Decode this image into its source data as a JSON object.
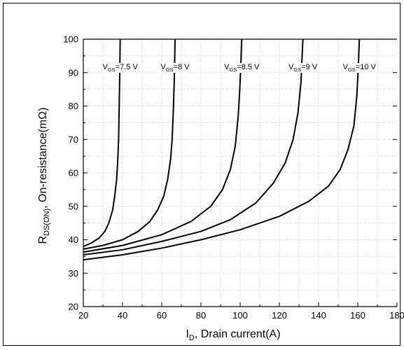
{
  "chart_data": {
    "type": "line",
    "xlabel": {
      "main": "I",
      "sub": "D",
      "rest": ", Drain current(A)"
    },
    "ylabel": {
      "main": "R",
      "sub": "DS(ON)",
      "rest": ", On-resistance(mΩ)"
    },
    "xlim": [
      20,
      180
    ],
    "ylim": [
      20,
      100
    ],
    "xticks": [
      20,
      40,
      60,
      80,
      100,
      120,
      140,
      160,
      180
    ],
    "yticks": [
      20,
      30,
      40,
      50,
      60,
      70,
      80,
      90,
      100
    ],
    "grid": true,
    "series": [
      {
        "name": "VGS=7.5 V",
        "label": {
          "main": "V",
          "sub": "GS",
          "rest": "=7.5 V"
        },
        "points": [
          [
            20,
            38
          ],
          [
            24,
            39
          ],
          [
            28,
            40.5
          ],
          [
            31,
            42.5
          ],
          [
            33,
            45
          ],
          [
            35,
            49
          ],
          [
            36,
            53
          ],
          [
            37,
            58
          ],
          [
            37.5,
            63
          ],
          [
            38,
            70
          ],
          [
            38.3,
            80
          ],
          [
            38.6,
            90
          ],
          [
            38.8,
            100
          ]
        ]
      },
      {
        "name": "VGS=8 V",
        "label": {
          "main": "V",
          "sub": "GS",
          "rest": "=8 V"
        },
        "points": [
          [
            20,
            37.2
          ],
          [
            30,
            38.3
          ],
          [
            40,
            40
          ],
          [
            48,
            42.5
          ],
          [
            54,
            45.5
          ],
          [
            58,
            49
          ],
          [
            61,
            53
          ],
          [
            63,
            58
          ],
          [
            64.5,
            64
          ],
          [
            65.3,
            70
          ],
          [
            66,
            80
          ],
          [
            66.5,
            90
          ],
          [
            66.8,
            100
          ]
        ]
      },
      {
        "name": "VGS=8.5 V",
        "label": {
          "main": "V",
          "sub": "GS",
          "rest": "=8.5 V"
        },
        "points": [
          [
            20,
            36.3
          ],
          [
            40,
            38.3
          ],
          [
            60,
            41.5
          ],
          [
            75,
            45.5
          ],
          [
            85,
            50
          ],
          [
            91,
            55
          ],
          [
            95,
            61
          ],
          [
            97.5,
            68
          ],
          [
            99,
            77
          ],
          [
            99.8,
            85
          ],
          [
            100.4,
            93
          ],
          [
            100.8,
            100
          ]
        ]
      },
      {
        "name": "VGS=9 V",
        "label": {
          "main": "V",
          "sub": "GS",
          "rest": "=9 V"
        },
        "points": [
          [
            20,
            35.5
          ],
          [
            40,
            37
          ],
          [
            60,
            39.5
          ],
          [
            80,
            42.5
          ],
          [
            95,
            46
          ],
          [
            108,
            51
          ],
          [
            117,
            57
          ],
          [
            123,
            63
          ],
          [
            127,
            70
          ],
          [
            129.5,
            78
          ],
          [
            131,
            87
          ],
          [
            132,
            100
          ]
        ]
      },
      {
        "name": "VGS=10 V",
        "label": {
          "main": "V",
          "sub": "GS",
          "rest": "=10 V"
        },
        "points": [
          [
            20,
            34
          ],
          [
            40,
            35.5
          ],
          [
            60,
            37.5
          ],
          [
            80,
            40
          ],
          [
            100,
            43
          ],
          [
            120,
            47
          ],
          [
            135,
            51.5
          ],
          [
            145,
            56
          ],
          [
            151,
            61
          ],
          [
            155,
            67
          ],
          [
            158,
            74
          ],
          [
            159.5,
            83
          ],
          [
            160.3,
            92
          ],
          [
            160.8,
            100
          ]
        ]
      }
    ]
  }
}
